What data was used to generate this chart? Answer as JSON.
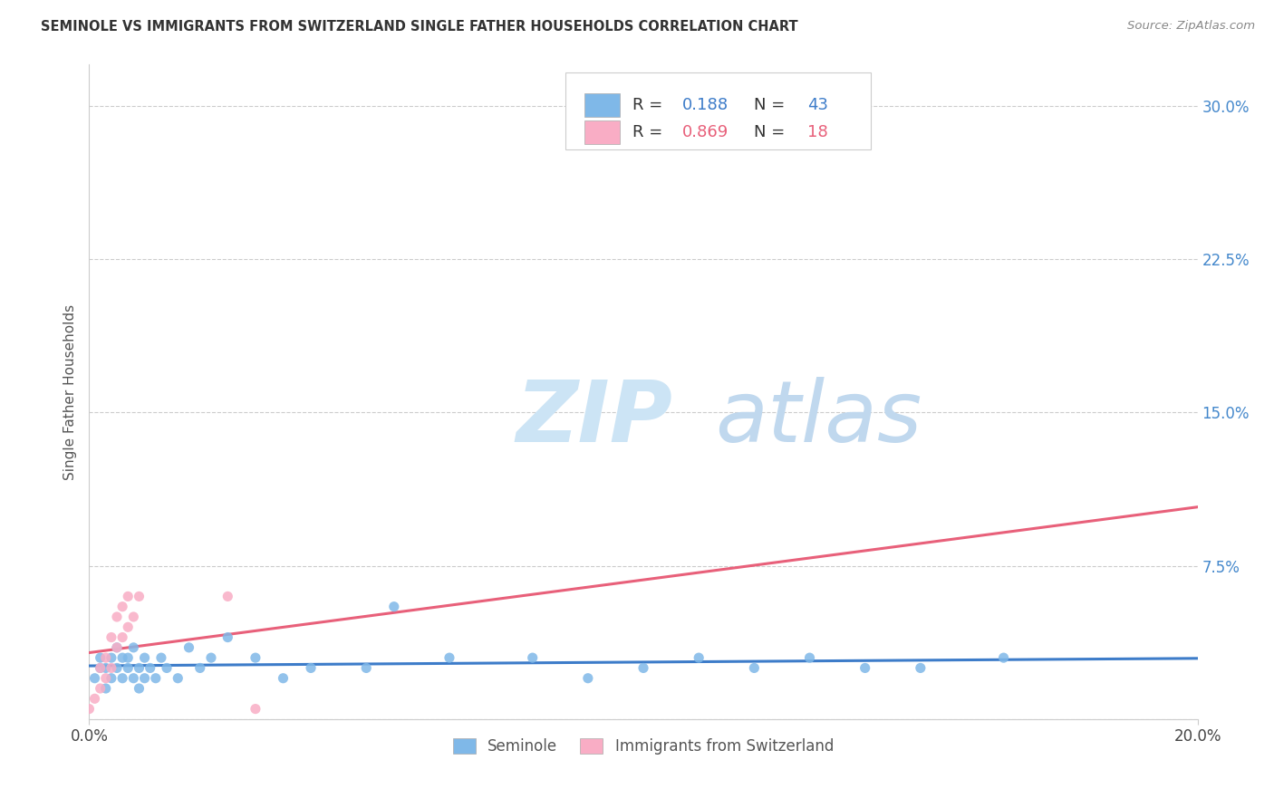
{
  "title": "SEMINOLE VS IMMIGRANTS FROM SWITZERLAND SINGLE FATHER HOUSEHOLDS CORRELATION CHART",
  "source": "Source: ZipAtlas.com",
  "ylabel": "Single Father Households",
  "xlim": [
    0.0,
    0.2
  ],
  "ylim": [
    0.0,
    0.32
  ],
  "xticks": [
    0.0,
    0.2
  ],
  "xtick_labels": [
    "0.0%",
    "20.0%"
  ],
  "yticks": [
    0.0,
    0.075,
    0.15,
    0.225,
    0.3
  ],
  "ytick_labels": [
    "",
    "7.5%",
    "15.0%",
    "22.5%",
    "30.0%"
  ],
  "r_seminole": 0.188,
  "n_seminole": 43,
  "r_swiss": 0.869,
  "n_swiss": 18,
  "seminole_color": "#7fb8e8",
  "swiss_color": "#f9adc5",
  "seminole_line_color": "#3d7cc9",
  "swiss_line_color": "#e8607a",
  "watermark_color": "#d0e8f8",
  "background_color": "#ffffff",
  "grid_color": "#cccccc",
  "legend_label_seminole": "Seminole",
  "legend_label_swiss": "Immigrants from Switzerland",
  "seminole_scatter_x": [
    0.001,
    0.002,
    0.002,
    0.003,
    0.003,
    0.004,
    0.004,
    0.005,
    0.005,
    0.006,
    0.006,
    0.007,
    0.007,
    0.008,
    0.008,
    0.009,
    0.009,
    0.01,
    0.01,
    0.011,
    0.012,
    0.013,
    0.014,
    0.016,
    0.018,
    0.02,
    0.022,
    0.025,
    0.03,
    0.035,
    0.04,
    0.05,
    0.055,
    0.065,
    0.08,
    0.09,
    0.1,
    0.11,
    0.12,
    0.13,
    0.14,
    0.15,
    0.165
  ],
  "seminole_scatter_y": [
    0.02,
    0.025,
    0.03,
    0.015,
    0.025,
    0.02,
    0.03,
    0.025,
    0.035,
    0.02,
    0.03,
    0.025,
    0.03,
    0.02,
    0.035,
    0.025,
    0.015,
    0.02,
    0.03,
    0.025,
    0.02,
    0.03,
    0.025,
    0.02,
    0.035,
    0.025,
    0.03,
    0.04,
    0.03,
    0.02,
    0.025,
    0.025,
    0.055,
    0.03,
    0.03,
    0.02,
    0.025,
    0.03,
    0.025,
    0.03,
    0.025,
    0.025,
    0.03
  ],
  "swiss_scatter_x": [
    0.0,
    0.001,
    0.002,
    0.002,
    0.003,
    0.003,
    0.004,
    0.004,
    0.005,
    0.005,
    0.006,
    0.006,
    0.007,
    0.007,
    0.008,
    0.009,
    0.025,
    0.03
  ],
  "swiss_scatter_y": [
    0.005,
    0.01,
    0.015,
    0.025,
    0.02,
    0.03,
    0.025,
    0.04,
    0.035,
    0.05,
    0.04,
    0.055,
    0.045,
    0.06,
    0.05,
    0.06,
    0.06,
    0.005
  ]
}
